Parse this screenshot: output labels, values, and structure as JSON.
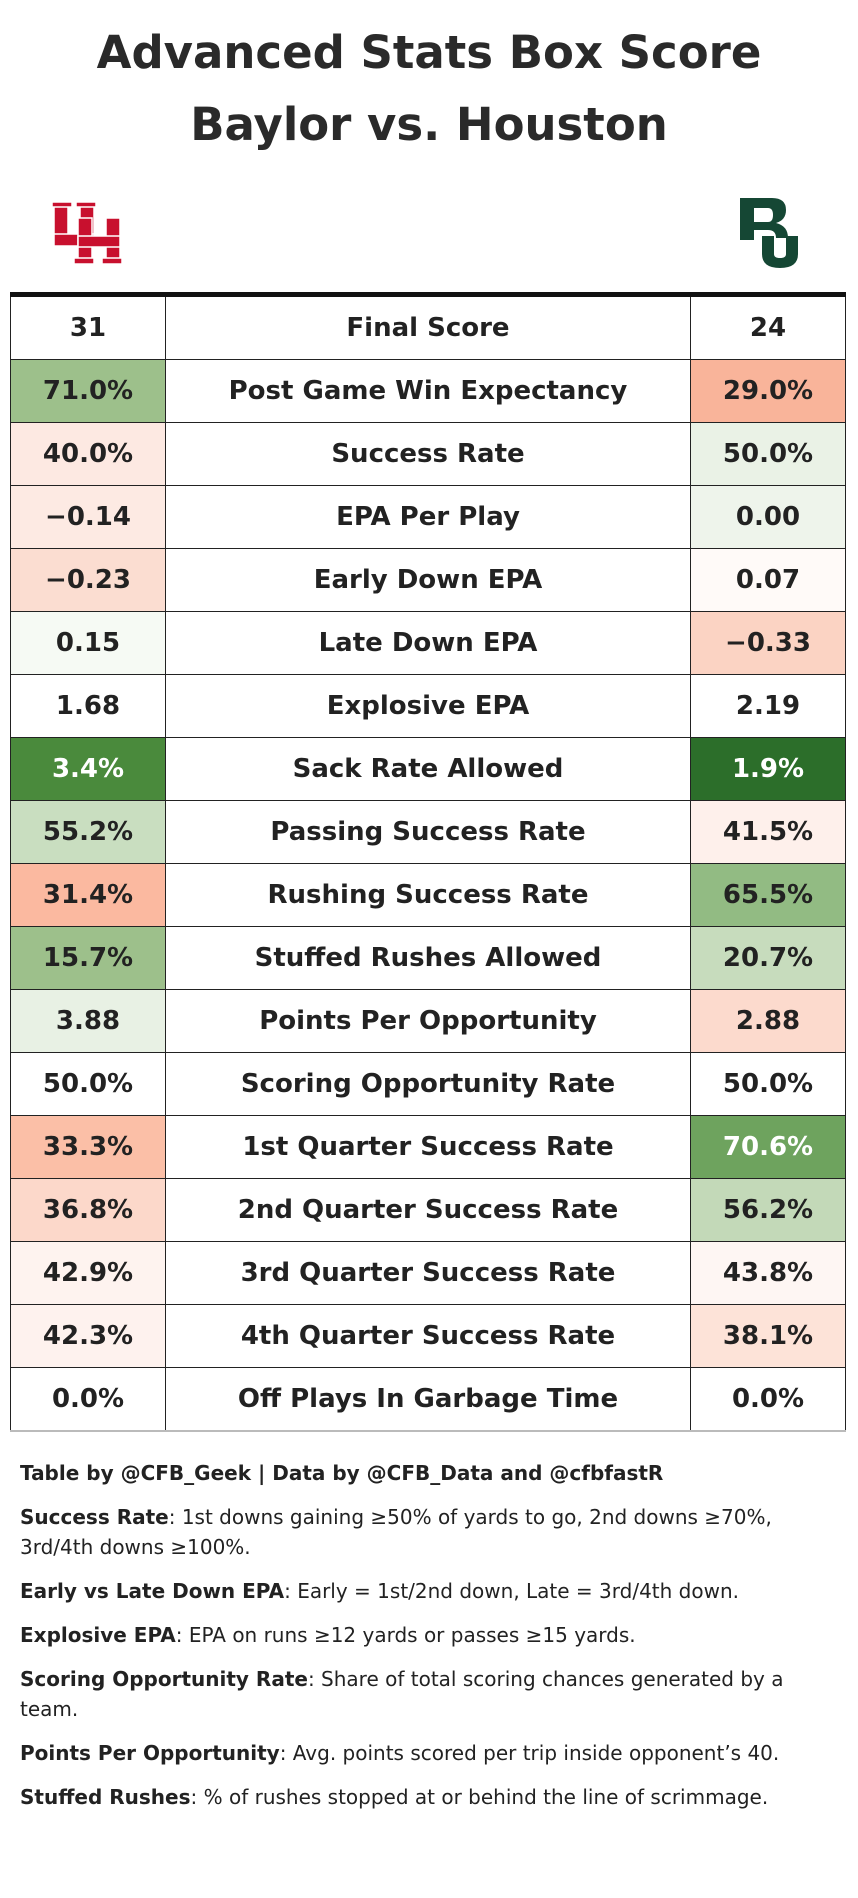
{
  "header": {
    "title_line1": "Advanced Stats Box Score",
    "title_line2": "Baylor vs. Houston"
  },
  "table": {
    "header": {
      "left": "31",
      "label": "Final Score",
      "right": "24"
    },
    "rows": [
      {
        "left": "71.0%",
        "label": "Post Game Win Expectancy",
        "right": "29.0%",
        "left_fill": "#9dc08b",
        "right_fill": "#f9b49a"
      },
      {
        "left": "40.0%",
        "label": "Success Rate",
        "right": "50.0%",
        "left_fill": "#fde9e2",
        "right_fill": "#eaf2e6"
      },
      {
        "left": "−0.14",
        "label": "EPA Per Play",
        "right": "0.00",
        "left_fill": "#fdeae3",
        "right_fill": "#eef4eb"
      },
      {
        "left": "−0.23",
        "label": "Early Down EPA",
        "right": "0.07",
        "left_fill": "#fbddd1",
        "right_fill": "#fffaf8"
      },
      {
        "left": "0.15",
        "label": "Late Down EPA",
        "right": "−0.33",
        "left_fill": "#f6faf4",
        "right_fill": "#fbd3c3"
      },
      {
        "left": "1.68",
        "label": "Explosive EPA",
        "right": "2.19",
        "left_fill": "#ffffff",
        "right_fill": "#ffffff"
      },
      {
        "left": "3.4%",
        "label": "Sack Rate Allowed",
        "right": "1.9%",
        "left_fill": "#4a8a3c",
        "right_fill": "#2c6e2a"
      },
      {
        "left": "55.2%",
        "label": "Passing Success Rate",
        "right": "41.5%",
        "left_fill": "#c9dec0",
        "right_fill": "#fef0eb"
      },
      {
        "left": "31.4%",
        "label": "Rushing Success Rate",
        "right": "65.5%",
        "left_fill": "#fbb9a0",
        "right_fill": "#92bb83"
      },
      {
        "left": "15.7%",
        "label": "Stuffed Rushes Allowed",
        "right": "20.7%",
        "left_fill": "#9dc08b",
        "right_fill": "#c7dcbd"
      },
      {
        "left": "3.88",
        "label": "Points Per Opportunity",
        "right": "2.88",
        "left_fill": "#e8f1e4",
        "right_fill": "#fcdacd"
      },
      {
        "left": "50.0%",
        "label": "Scoring Opportunity Rate",
        "right": "50.0%",
        "left_fill": "#ffffff",
        "right_fill": "#ffffff"
      },
      {
        "left": "33.3%",
        "label": "1st Quarter Success Rate",
        "right": "70.6%",
        "left_fill": "#fbbfa7",
        "right_fill": "#6ea35e"
      },
      {
        "left": "36.8%",
        "label": "2nd Quarter Success Rate",
        "right": "56.2%",
        "left_fill": "#fcd8ca",
        "right_fill": "#c3d9b8"
      },
      {
        "left": "42.9%",
        "label": "3rd Quarter Success Rate",
        "right": "43.8%",
        "left_fill": "#fef3ef",
        "right_fill": "#fef6f3"
      },
      {
        "left": "42.3%",
        "label": "4th Quarter Success Rate",
        "right": "38.1%",
        "left_fill": "#fef2ee",
        "right_fill": "#fde3d8"
      },
      {
        "left": "0.0%",
        "label": "Off Plays In Garbage Time",
        "right": "0.0%",
        "left_fill": "#ffffff",
        "right_fill": "#ffffff"
      }
    ]
  },
  "footer": {
    "credit": "Table by @CFB_Geek | Data by @CFB_Data and @cfbfastR",
    "notes": [
      {
        "term": "Success Rate",
        "text": ": 1st downs gaining ≥50% of yards to go, 2nd downs ≥70%, 3rd/4th downs ≥100%."
      },
      {
        "term": "Early vs Late Down EPA",
        "text": ": Early = 1st/2nd down, Late = 3rd/4th down."
      },
      {
        "term": "Explosive EPA",
        "text": ": EPA on runs ≥12 yards or passes ≥15 yards."
      },
      {
        "term": "Scoring Opportunity Rate",
        "text": ": Share of total scoring chances generated by a team."
      },
      {
        "term": "Points Per Opportunity",
        "text": ": Avg. points scored per trip inside opponent’s 40."
      },
      {
        "term": "Stuffed Rushes",
        "text": ": % of rushes stopped at or behind the line of scrimmage."
      }
    ]
  }
}
